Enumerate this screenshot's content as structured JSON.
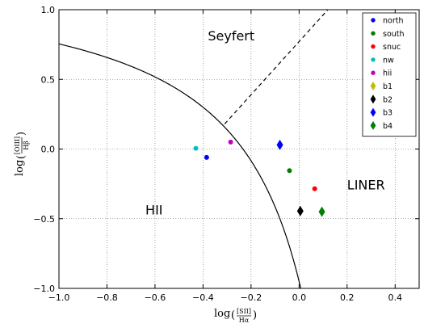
{
  "chart_data": {
    "type": "scatter",
    "xlim": [
      -1.0,
      0.5
    ],
    "ylim": [
      -1.0,
      1.0
    ],
    "xticks": [
      -1.0,
      -0.8,
      -0.6,
      -0.4,
      -0.2,
      0.0,
      0.2,
      0.4
    ],
    "xtick_labels": [
      "−1.0",
      "−0.8",
      "−0.6",
      "−0.4",
      "−0.2",
      "0.0",
      "0.2",
      "0.4"
    ],
    "yticks": [
      -1.0,
      -0.5,
      0.0,
      0.5,
      1.0
    ],
    "ytick_labels": [
      "−1.0",
      "−0.5",
      "0.0",
      "0.5",
      "1.0"
    ],
    "grid": true,
    "legend_position": "top-right",
    "xlabel": {
      "prefix": "log",
      "num": "[SII]",
      "den": "Hα"
    },
    "ylabel": {
      "prefix": "log",
      "num": "[OIII]",
      "den": "Hβ"
    },
    "region_labels": [
      {
        "text": "Seyfert",
        "x": -0.38,
        "y": 0.78
      },
      {
        "text": "LINER",
        "x": 0.2,
        "y": -0.29
      },
      {
        "text": "HII",
        "x": -0.64,
        "y": -0.47
      }
    ],
    "series": [
      {
        "name": "north",
        "marker": "circle",
        "color": "#0000ff",
        "points": [
          [
            -0.385,
            -0.06
          ]
        ]
      },
      {
        "name": "south",
        "marker": "circle",
        "color": "#008000",
        "points": [
          [
            -0.04,
            -0.155
          ]
        ]
      },
      {
        "name": "snuc",
        "marker": "circle",
        "color": "#ff0000",
        "points": [
          [
            0.065,
            -0.285
          ]
        ]
      },
      {
        "name": "nw",
        "marker": "circle",
        "color": "#00bfbf",
        "points": [
          [
            -0.43,
            0.005
          ]
        ]
      },
      {
        "name": "hii",
        "marker": "circle",
        "color": "#bf00bf",
        "points": [
          [
            -0.285,
            0.05
          ]
        ]
      },
      {
        "name": "b1",
        "marker": "diamond",
        "color": "#bfbf00",
        "points": []
      },
      {
        "name": "b2",
        "marker": "diamond",
        "color": "#000000",
        "points": [
          [
            0.005,
            -0.445
          ]
        ]
      },
      {
        "name": "b3",
        "marker": "diamond",
        "color": "#0000ff",
        "points": [
          [
            -0.08,
            0.03
          ]
        ]
      },
      {
        "name": "b4",
        "marker": "diamond",
        "color": "#008000",
        "points": [
          [
            0.095,
            -0.45
          ]
        ]
      }
    ],
    "curves": [
      {
        "kind": "solid",
        "formula": "0.72/(x-0.32)+1.30"
      },
      {
        "kind": "dashed",
        "points": [
          [
            -0.31,
            0.18
          ],
          [
            0.12,
            1.0
          ]
        ]
      }
    ]
  }
}
